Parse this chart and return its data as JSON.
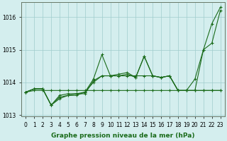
{
  "xlabel": "Graphe pression niveau de la mer (hPa)",
  "x": [
    0,
    1,
    2,
    3,
    4,
    5,
    6,
    7,
    8,
    9,
    10,
    11,
    12,
    13,
    14,
    15,
    16,
    17,
    18,
    19,
    20,
    21,
    22,
    23
  ],
  "series": [
    [
      1013.7,
      1013.75,
      1013.75,
      1013.75,
      1013.75,
      1013.75,
      1013.75,
      1013.75,
      1013.75,
      1013.75,
      1013.75,
      1013.75,
      1013.75,
      1013.75,
      1013.75,
      1013.75,
      1013.75,
      1013.75,
      1013.75,
      1013.75,
      1013.75,
      1013.75,
      1013.75,
      1013.75
    ],
    [
      1013.7,
      1013.8,
      1013.8,
      1013.3,
      1013.55,
      1013.6,
      1013.65,
      1013.65,
      1014.05,
      1014.2,
      1014.2,
      1014.2,
      1014.2,
      1014.2,
      1014.2,
      1014.2,
      1014.15,
      1014.2,
      1013.75,
      1013.75,
      1013.75,
      1013.75,
      1013.75,
      1013.75
    ],
    [
      1013.7,
      1013.8,
      1013.8,
      1013.3,
      1013.6,
      1013.65,
      1013.65,
      1013.7,
      1014.0,
      1014.2,
      1014.2,
      1014.25,
      1014.3,
      1014.15,
      1014.8,
      1014.2,
      1014.15,
      1014.2,
      1013.75,
      1013.75,
      1013.75,
      1015.0,
      1015.2,
      1016.2
    ],
    [
      1013.7,
      1013.8,
      1013.8,
      1013.3,
      1013.5,
      1013.6,
      1013.6,
      1013.7,
      1014.1,
      1014.85,
      1014.2,
      1014.2,
      1014.25,
      1014.15,
      1014.8,
      1014.2,
      1014.15,
      1014.2,
      1013.75,
      1013.75,
      1014.1,
      1015.0,
      1015.8,
      1016.3
    ]
  ],
  "line_color": "#1a6b1a",
  "marker_color": "#1a6b1a",
  "bg_color": "#d4eeee",
  "grid_color": "#a0cccc",
  "ylim": [
    1012.95,
    1016.45
  ],
  "yticks": [
    1013,
    1014,
    1015,
    1016
  ],
  "marker": "+",
  "markersize": 3,
  "linewidth": 0.8,
  "tick_fontsize": 5.5,
  "label_fontsize": 6.5
}
